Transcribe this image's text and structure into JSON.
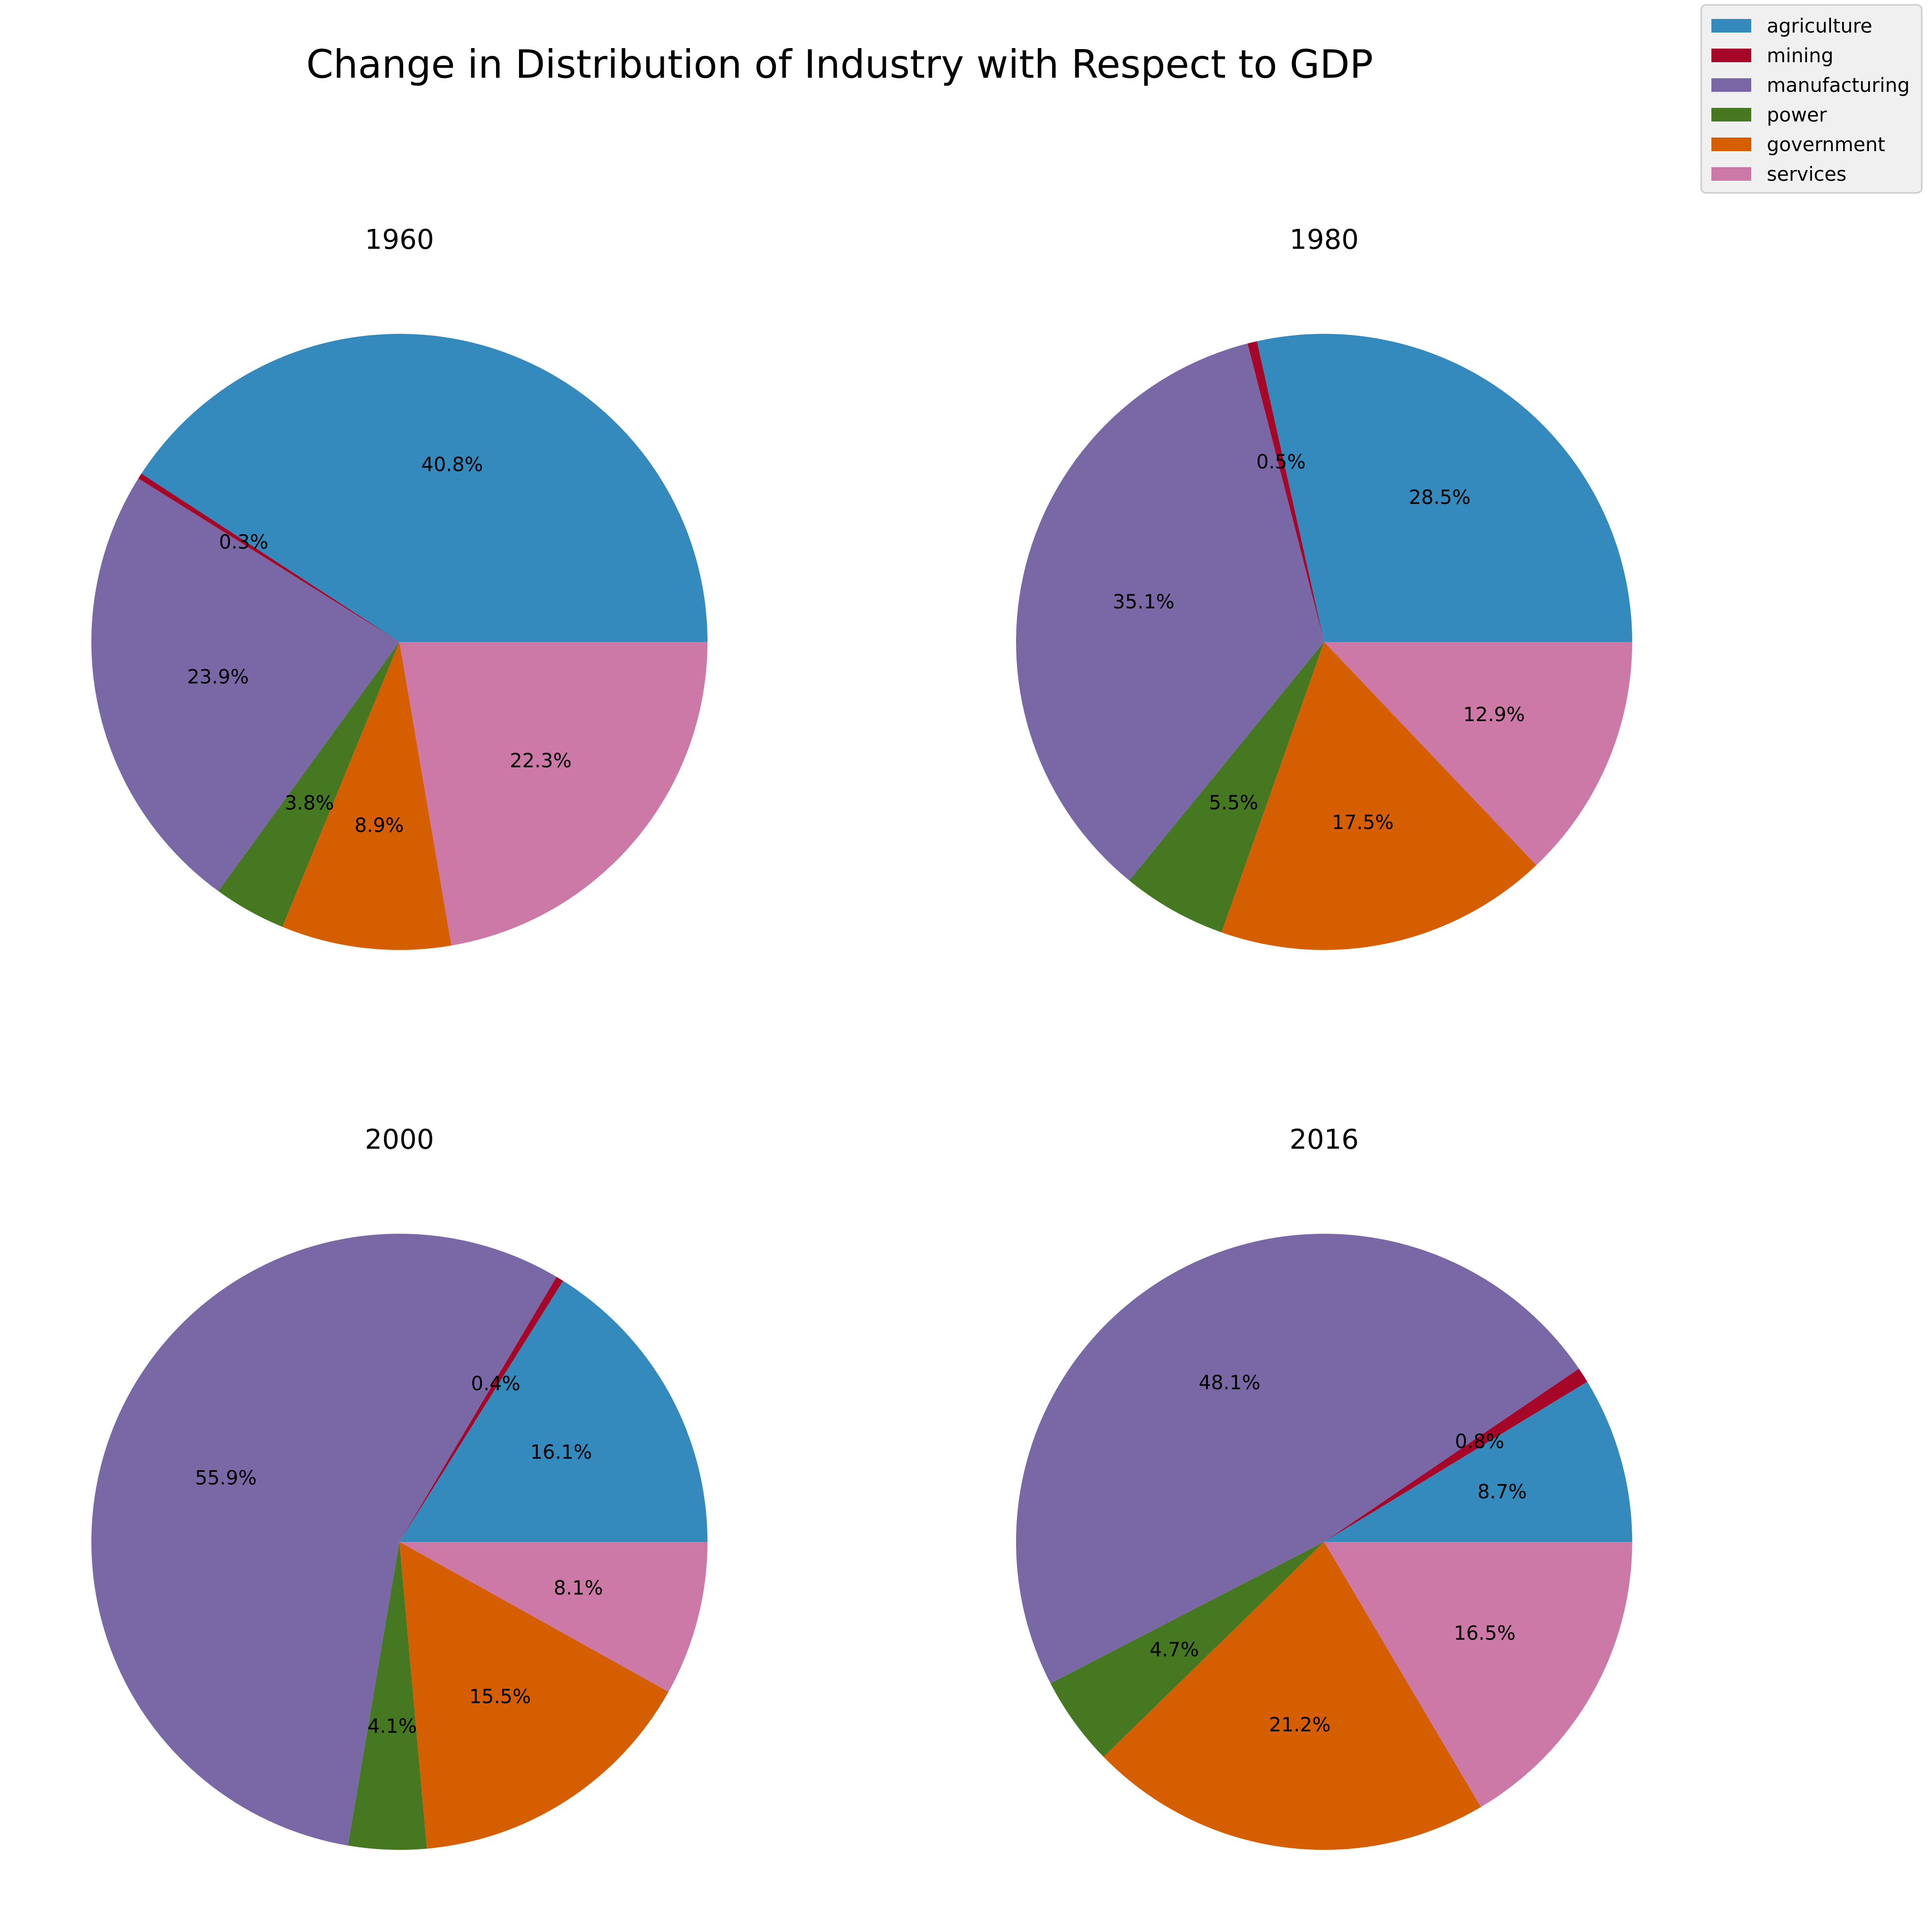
{
  "chart_data": {
    "type": "pie",
    "title": "Change in Distribution of Industry with Respect to GDP",
    "categories": [
      "agriculture",
      "mining",
      "manufacturing",
      "power",
      "government",
      "services"
    ],
    "colors": [
      "#348abd",
      "#a60628",
      "#7a68a6",
      "#467821",
      "#d55e00",
      "#cc79a7"
    ],
    "legend_position": "top-right",
    "pies": [
      {
        "title": "1960",
        "values": [
          40.8,
          0.3,
          23.9,
          3.8,
          8.9,
          22.3
        ],
        "labels": [
          "40.8%",
          "0.3%",
          "23.9%",
          "3.8%",
          "8.9%",
          "22.3%"
        ]
      },
      {
        "title": "1980",
        "values": [
          28.5,
          0.5,
          35.1,
          5.5,
          17.5,
          12.9
        ],
        "labels": [
          "28.5%",
          "0.5%",
          "35.1%",
          "5.5%",
          "17.5%",
          "12.9%"
        ]
      },
      {
        "title": "2000",
        "values": [
          16.1,
          0.4,
          55.9,
          4.1,
          15.5,
          8.1
        ],
        "labels": [
          "16.1%",
          "0.4%",
          "55.9%",
          "4.1%",
          "15.5%",
          "8.1%"
        ]
      },
      {
        "title": "2016",
        "values": [
          8.7,
          0.8,
          48.1,
          4.7,
          21.2,
          16.5
        ],
        "labels": [
          "8.7%",
          "0.8%",
          "48.1%",
          "4.7%",
          "21.2%",
          "16.5%"
        ]
      }
    ]
  }
}
